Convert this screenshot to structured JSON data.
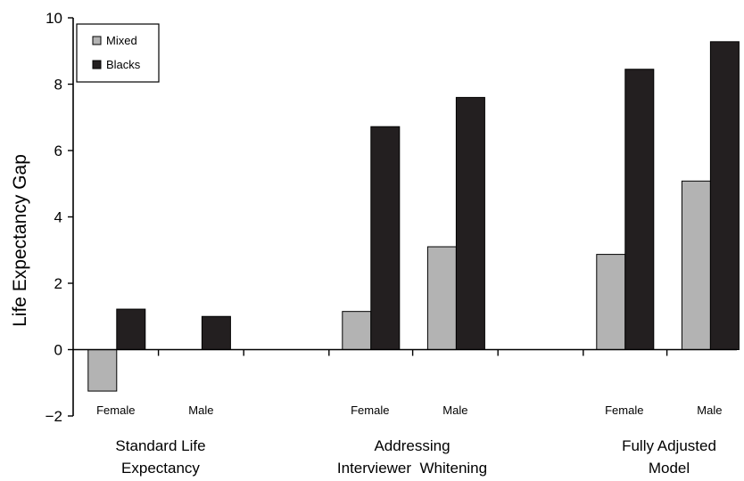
{
  "chart_data": {
    "type": "bar",
    "title": "",
    "ylabel": "Life Expectancy Gap",
    "ylim": [
      -2,
      10
    ],
    "yticks": [
      "10",
      "8",
      "6",
      "4",
      "2",
      "0",
      "−2"
    ],
    "ytick_values": [
      10,
      8,
      6,
      4,
      2,
      0,
      -2
    ],
    "groups": [
      {
        "label_lines": [
          "Standard Life",
          "Expectancy"
        ]
      },
      {
        "label_lines": [
          "Addressing",
          "Interviewer  Whitening"
        ]
      },
      {
        "label_lines": [
          "Fully Adjusted",
          "Model"
        ]
      }
    ],
    "categories": [
      {
        "group": 0,
        "label": "Female"
      },
      {
        "group": 0,
        "label": "Male"
      },
      {
        "group": 1,
        "label": "Female"
      },
      {
        "group": 1,
        "label": "Male"
      },
      {
        "group": 2,
        "label": "Female"
      },
      {
        "group": 2,
        "label": "Male"
      }
    ],
    "series": [
      {
        "name": "Mixed",
        "color": "#b3b3b3",
        "values": [
          -1.25,
          0,
          1.15,
          3.1,
          2.87,
          5.08
        ]
      },
      {
        "name": "Blacks",
        "color": "#231f20",
        "values": [
          1.22,
          1.0,
          6.72,
          7.6,
          8.45,
          9.28
        ]
      }
    ],
    "grid": false,
    "legend": "top-left"
  }
}
